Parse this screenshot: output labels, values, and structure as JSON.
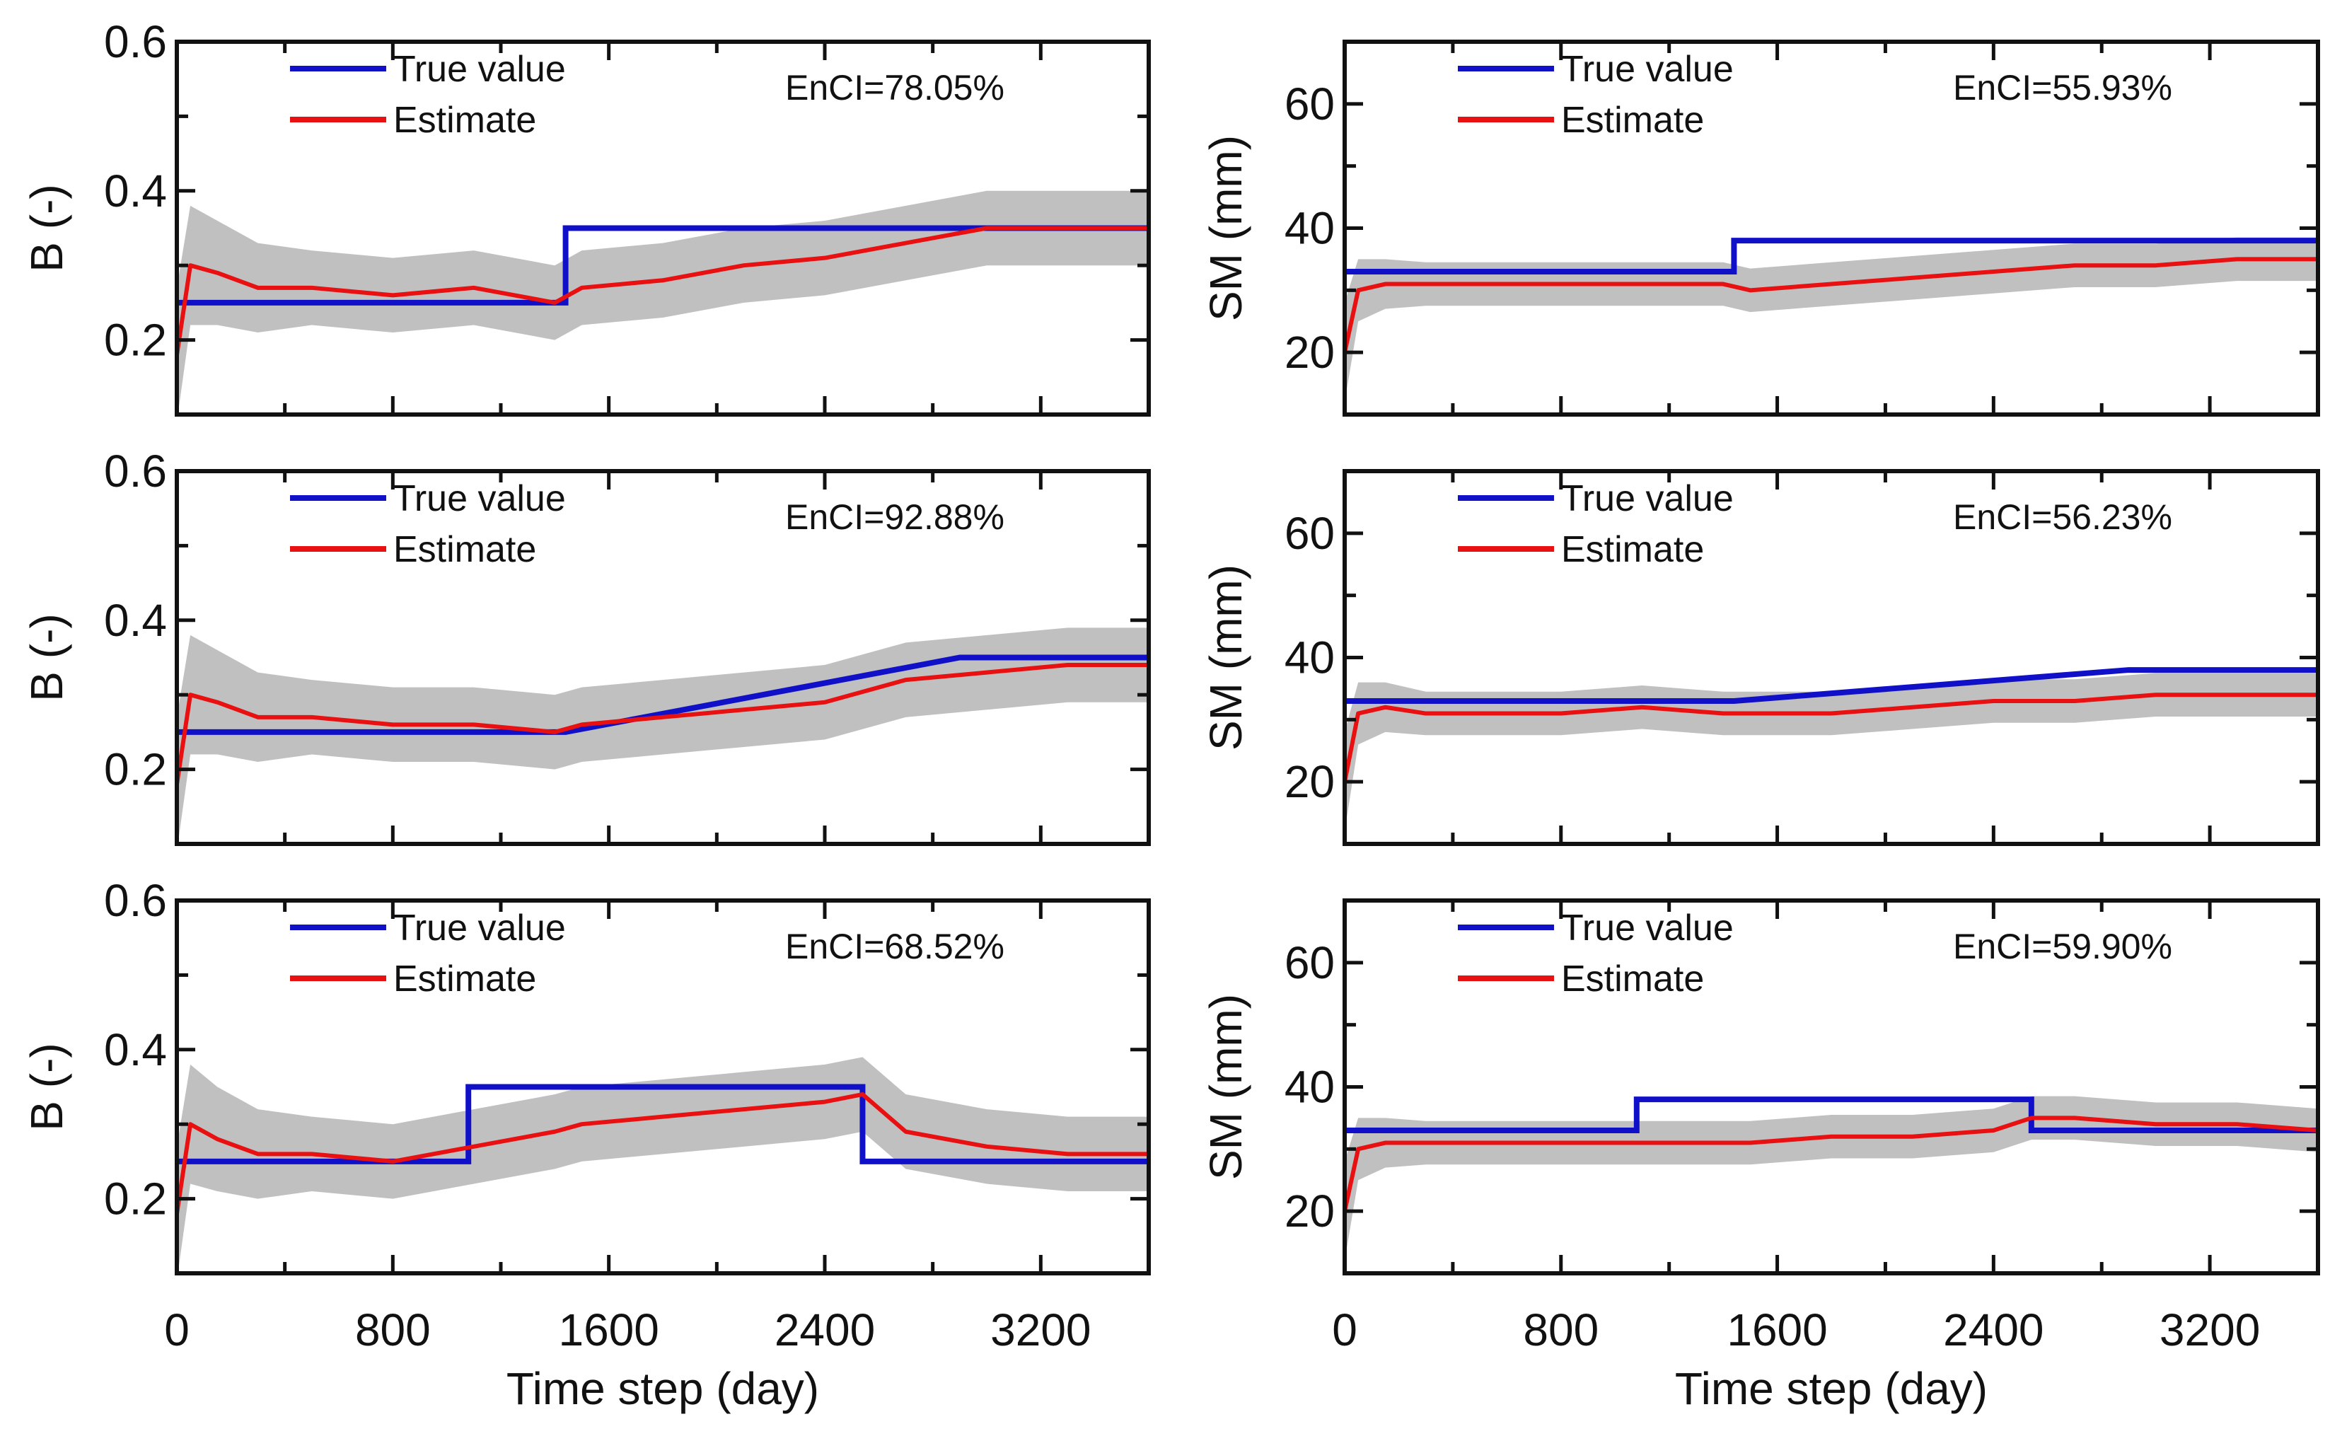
{
  "colors": {
    "true_value": "#1010c8",
    "estimate": "#e81010",
    "band": "#c0c0c0",
    "axis": "#111111"
  },
  "legend": {
    "true_label": "True value",
    "estimate_label": "Estimate"
  },
  "chart_data": [
    {
      "type": "line",
      "panel": "B-step",
      "ylabel": "B (-)",
      "xlabel": "",
      "ylim": [
        0.1,
        0.6
      ],
      "xlim": [
        0,
        3600
      ],
      "yticks": [
        0.2,
        0.4,
        0.6
      ],
      "yticklabels": [
        "0.2",
        "0.4",
        "0.6"
      ],
      "yminor": [
        0.3,
        0.5
      ],
      "xticks": [
        0,
        800,
        1600,
        2400,
        3200
      ],
      "xticklabels": [],
      "annotation": "EnCI=78.05%",
      "true_value": {
        "x": [
          0,
          1440,
          1440,
          3600
        ],
        "y": [
          0.25,
          0.25,
          0.35,
          0.35
        ]
      },
      "estimate": {
        "x": [
          0,
          50,
          150,
          300,
          500,
          800,
          1100,
          1400,
          1500,
          1800,
          2100,
          2400,
          2700,
          3000,
          3300,
          3600
        ],
        "y": [
          0.18,
          0.3,
          0.29,
          0.27,
          0.27,
          0.26,
          0.27,
          0.25,
          0.27,
          0.28,
          0.3,
          0.31,
          0.33,
          0.35,
          0.35,
          0.35
        ],
        "band_halfwidth": [
          0.09,
          0.08,
          0.07,
          0.06,
          0.05,
          0.05,
          0.05,
          0.05,
          0.05,
          0.05,
          0.05,
          0.05,
          0.05,
          0.05,
          0.05,
          0.05
        ]
      }
    },
    {
      "type": "line",
      "panel": "SM-step",
      "ylabel": "SM (mm)",
      "xlabel": "",
      "ylim": [
        10,
        70
      ],
      "xlim": [
        0,
        3600
      ],
      "yticks": [
        20,
        40,
        60
      ],
      "yticklabels": [
        "20",
        "40",
        "60"
      ],
      "yminor": [
        30,
        50
      ],
      "xticks": [
        0,
        800,
        1600,
        2400,
        3200
      ],
      "xticklabels": [],
      "annotation": "EnCI=55.93%",
      "true_value": {
        "x": [
          0,
          1440,
          1440,
          3600
        ],
        "y": [
          33,
          33,
          38,
          38
        ]
      },
      "estimate": {
        "x": [
          0,
          50,
          150,
          300,
          500,
          800,
          1100,
          1400,
          1500,
          1800,
          2100,
          2400,
          2700,
          3000,
          3300,
          3600
        ],
        "y": [
          20,
          30,
          31,
          31,
          31,
          31,
          31,
          31,
          30,
          31,
          32,
          33,
          34,
          34,
          35,
          35
        ],
        "band_halfwidth": [
          8,
          5,
          4,
          3.5,
          3.5,
          3.5,
          3.5,
          3.5,
          3.5,
          3.5,
          3.5,
          3.5,
          3.5,
          3.5,
          3.5,
          3.5
        ]
      }
    },
    {
      "type": "line",
      "panel": "B-linear",
      "ylabel": "B (-)",
      "xlabel": "",
      "ylim": [
        0.1,
        0.6
      ],
      "xlim": [
        0,
        3600
      ],
      "yticks": [
        0.2,
        0.4,
        0.6
      ],
      "yticklabels": [
        "0.2",
        "0.4",
        "0.6"
      ],
      "yminor": [
        0.3,
        0.5
      ],
      "xticks": [
        0,
        800,
        1600,
        2400,
        3200
      ],
      "xticklabels": [],
      "annotation": "EnCI=92.88%",
      "true_value": {
        "x": [
          0,
          1440,
          2900,
          3600
        ],
        "y": [
          0.25,
          0.25,
          0.35,
          0.35
        ]
      },
      "estimate": {
        "x": [
          0,
          50,
          150,
          300,
          500,
          800,
          1100,
          1400,
          1500,
          1800,
          2100,
          2400,
          2700,
          3000,
          3300,
          3600
        ],
        "y": [
          0.18,
          0.3,
          0.29,
          0.27,
          0.27,
          0.26,
          0.26,
          0.25,
          0.26,
          0.27,
          0.28,
          0.29,
          0.32,
          0.33,
          0.34,
          0.34
        ],
        "band_halfwidth": [
          0.09,
          0.08,
          0.07,
          0.06,
          0.05,
          0.05,
          0.05,
          0.05,
          0.05,
          0.05,
          0.05,
          0.05,
          0.05,
          0.05,
          0.05,
          0.05
        ]
      }
    },
    {
      "type": "line",
      "panel": "SM-linear",
      "ylabel": "SM (mm)",
      "xlabel": "",
      "ylim": [
        10,
        70
      ],
      "xlim": [
        0,
        3600
      ],
      "yticks": [
        20,
        40,
        60
      ],
      "yticklabels": [
        "20",
        "40",
        "60"
      ],
      "yminor": [
        30,
        50
      ],
      "xticks": [
        0,
        800,
        1600,
        2400,
        3200
      ],
      "xticklabels": [],
      "annotation": "EnCI=56.23%",
      "true_value": {
        "x": [
          0,
          1440,
          2900,
          3600
        ],
        "y": [
          33,
          33,
          38,
          38
        ]
      },
      "estimate": {
        "x": [
          0,
          50,
          150,
          300,
          500,
          800,
          1100,
          1400,
          1500,
          1800,
          2100,
          2400,
          2700,
          3000,
          3300,
          3600
        ],
        "y": [
          20,
          31,
          32,
          31,
          31,
          31,
          32,
          31,
          31,
          31,
          32,
          33,
          33,
          34,
          34,
          34
        ],
        "band_halfwidth": [
          8,
          5,
          4,
          3.5,
          3.5,
          3.5,
          3.5,
          3.5,
          3.5,
          3.5,
          3.5,
          3.5,
          3.5,
          3.5,
          3.5,
          3.5
        ]
      }
    },
    {
      "type": "line",
      "panel": "B-pulse",
      "ylabel": "B (-)",
      "xlabel": "Time step (day)",
      "ylim": [
        0.1,
        0.6
      ],
      "xlim": [
        0,
        3600
      ],
      "yticks": [
        0.2,
        0.4,
        0.6
      ],
      "yticklabels": [
        "0.2",
        "0.4",
        "0.6"
      ],
      "yminor": [
        0.3,
        0.5
      ],
      "xticks": [
        0,
        800,
        1600,
        2400,
        3200
      ],
      "xticklabels": [
        "0",
        "800",
        "1600",
        "2400",
        "3200"
      ],
      "annotation": "EnCI=68.52%",
      "true_value": {
        "x": [
          0,
          1080,
          1080,
          2540,
          2540,
          3600
        ],
        "y": [
          0.25,
          0.25,
          0.35,
          0.35,
          0.25,
          0.25
        ]
      },
      "estimate": {
        "x": [
          0,
          50,
          150,
          300,
          500,
          800,
          1100,
          1400,
          1500,
          1800,
          2100,
          2400,
          2540,
          2700,
          3000,
          3300,
          3600
        ],
        "y": [
          0.18,
          0.3,
          0.28,
          0.26,
          0.26,
          0.25,
          0.27,
          0.29,
          0.3,
          0.31,
          0.32,
          0.33,
          0.34,
          0.29,
          0.27,
          0.26,
          0.26
        ],
        "band_halfwidth": [
          0.09,
          0.08,
          0.07,
          0.06,
          0.05,
          0.05,
          0.05,
          0.05,
          0.05,
          0.05,
          0.05,
          0.05,
          0.05,
          0.05,
          0.05,
          0.05,
          0.05
        ]
      }
    },
    {
      "type": "line",
      "panel": "SM-pulse",
      "ylabel": "SM (mm)",
      "xlabel": "Time step (day)",
      "ylim": [
        10,
        70
      ],
      "xlim": [
        0,
        3600
      ],
      "yticks": [
        20,
        40,
        60
      ],
      "yticklabels": [
        "20",
        "40",
        "60"
      ],
      "yminor": [
        30,
        50
      ],
      "xticks": [
        0,
        800,
        1600,
        2400,
        3200
      ],
      "xticklabels": [
        "0",
        "800",
        "1600",
        "2400",
        "3200"
      ],
      "annotation": "EnCI=59.90%",
      "true_value": {
        "x": [
          0,
          1080,
          1080,
          2540,
          2540,
          3600
        ],
        "y": [
          33,
          33,
          38,
          38,
          33,
          33
        ]
      },
      "estimate": {
        "x": [
          0,
          50,
          150,
          300,
          500,
          800,
          1100,
          1400,
          1500,
          1800,
          2100,
          2400,
          2540,
          2700,
          3000,
          3300,
          3600
        ],
        "y": [
          20,
          30,
          31,
          31,
          31,
          31,
          31,
          31,
          31,
          32,
          32,
          33,
          35,
          35,
          34,
          34,
          33
        ],
        "band_halfwidth": [
          8,
          5,
          4,
          3.5,
          3.5,
          3.5,
          3.5,
          3.5,
          3.5,
          3.5,
          3.5,
          3.5,
          3.5,
          3.5,
          3.5,
          3.5,
          3.5
        ]
      }
    }
  ]
}
